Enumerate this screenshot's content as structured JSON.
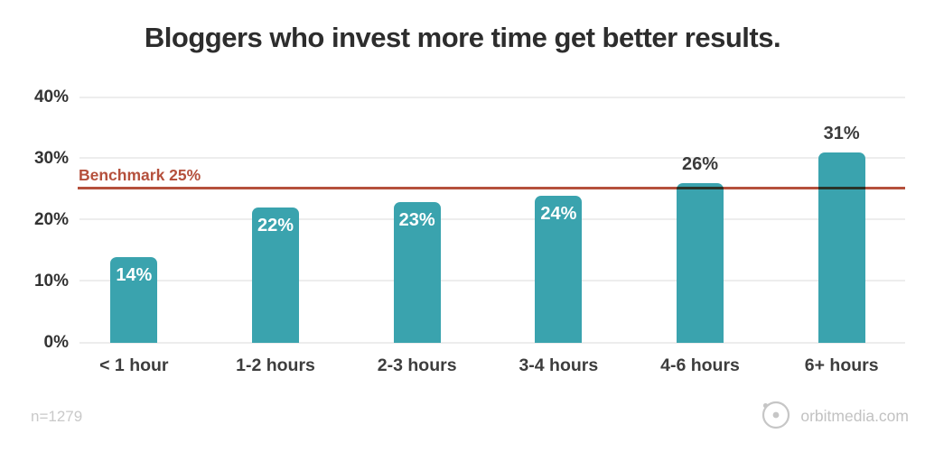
{
  "title": "Bloggers who invest more time get better results.",
  "chart_data": {
    "type": "bar",
    "title": "Bloggers who invest more time get better results.",
    "categories": [
      "< 1 hour",
      "1-2 hours",
      "2-3 hours",
      "3-4 hours",
      "4-6 hours",
      "6+ hours"
    ],
    "values": [
      14,
      22,
      23,
      24,
      26,
      31
    ],
    "value_labels": [
      "14%",
      "22%",
      "23%",
      "24%",
      "26%",
      "31%"
    ],
    "label_positions": [
      "inside",
      "inside",
      "inside",
      "inside",
      "above",
      "above"
    ],
    "xlabel": "",
    "ylabel": "",
    "ylim": [
      0,
      40
    ],
    "yticks": [
      "0%",
      "10%",
      "20%",
      "30%",
      "40%"
    ],
    "grid": true,
    "legend": "none",
    "benchmark": {
      "value": 25,
      "label": "Benchmark 25%"
    },
    "bar_color": "#3aa3ae",
    "benchmark_color": "#b5503c",
    "value_label_inside_color": "#ffffff",
    "value_label_above_color": "#3b3b3b"
  },
  "footer": {
    "sample_size": "n=1279",
    "source": "orbitmedia.com",
    "logo_icon": "orbit-logo-icon"
  }
}
